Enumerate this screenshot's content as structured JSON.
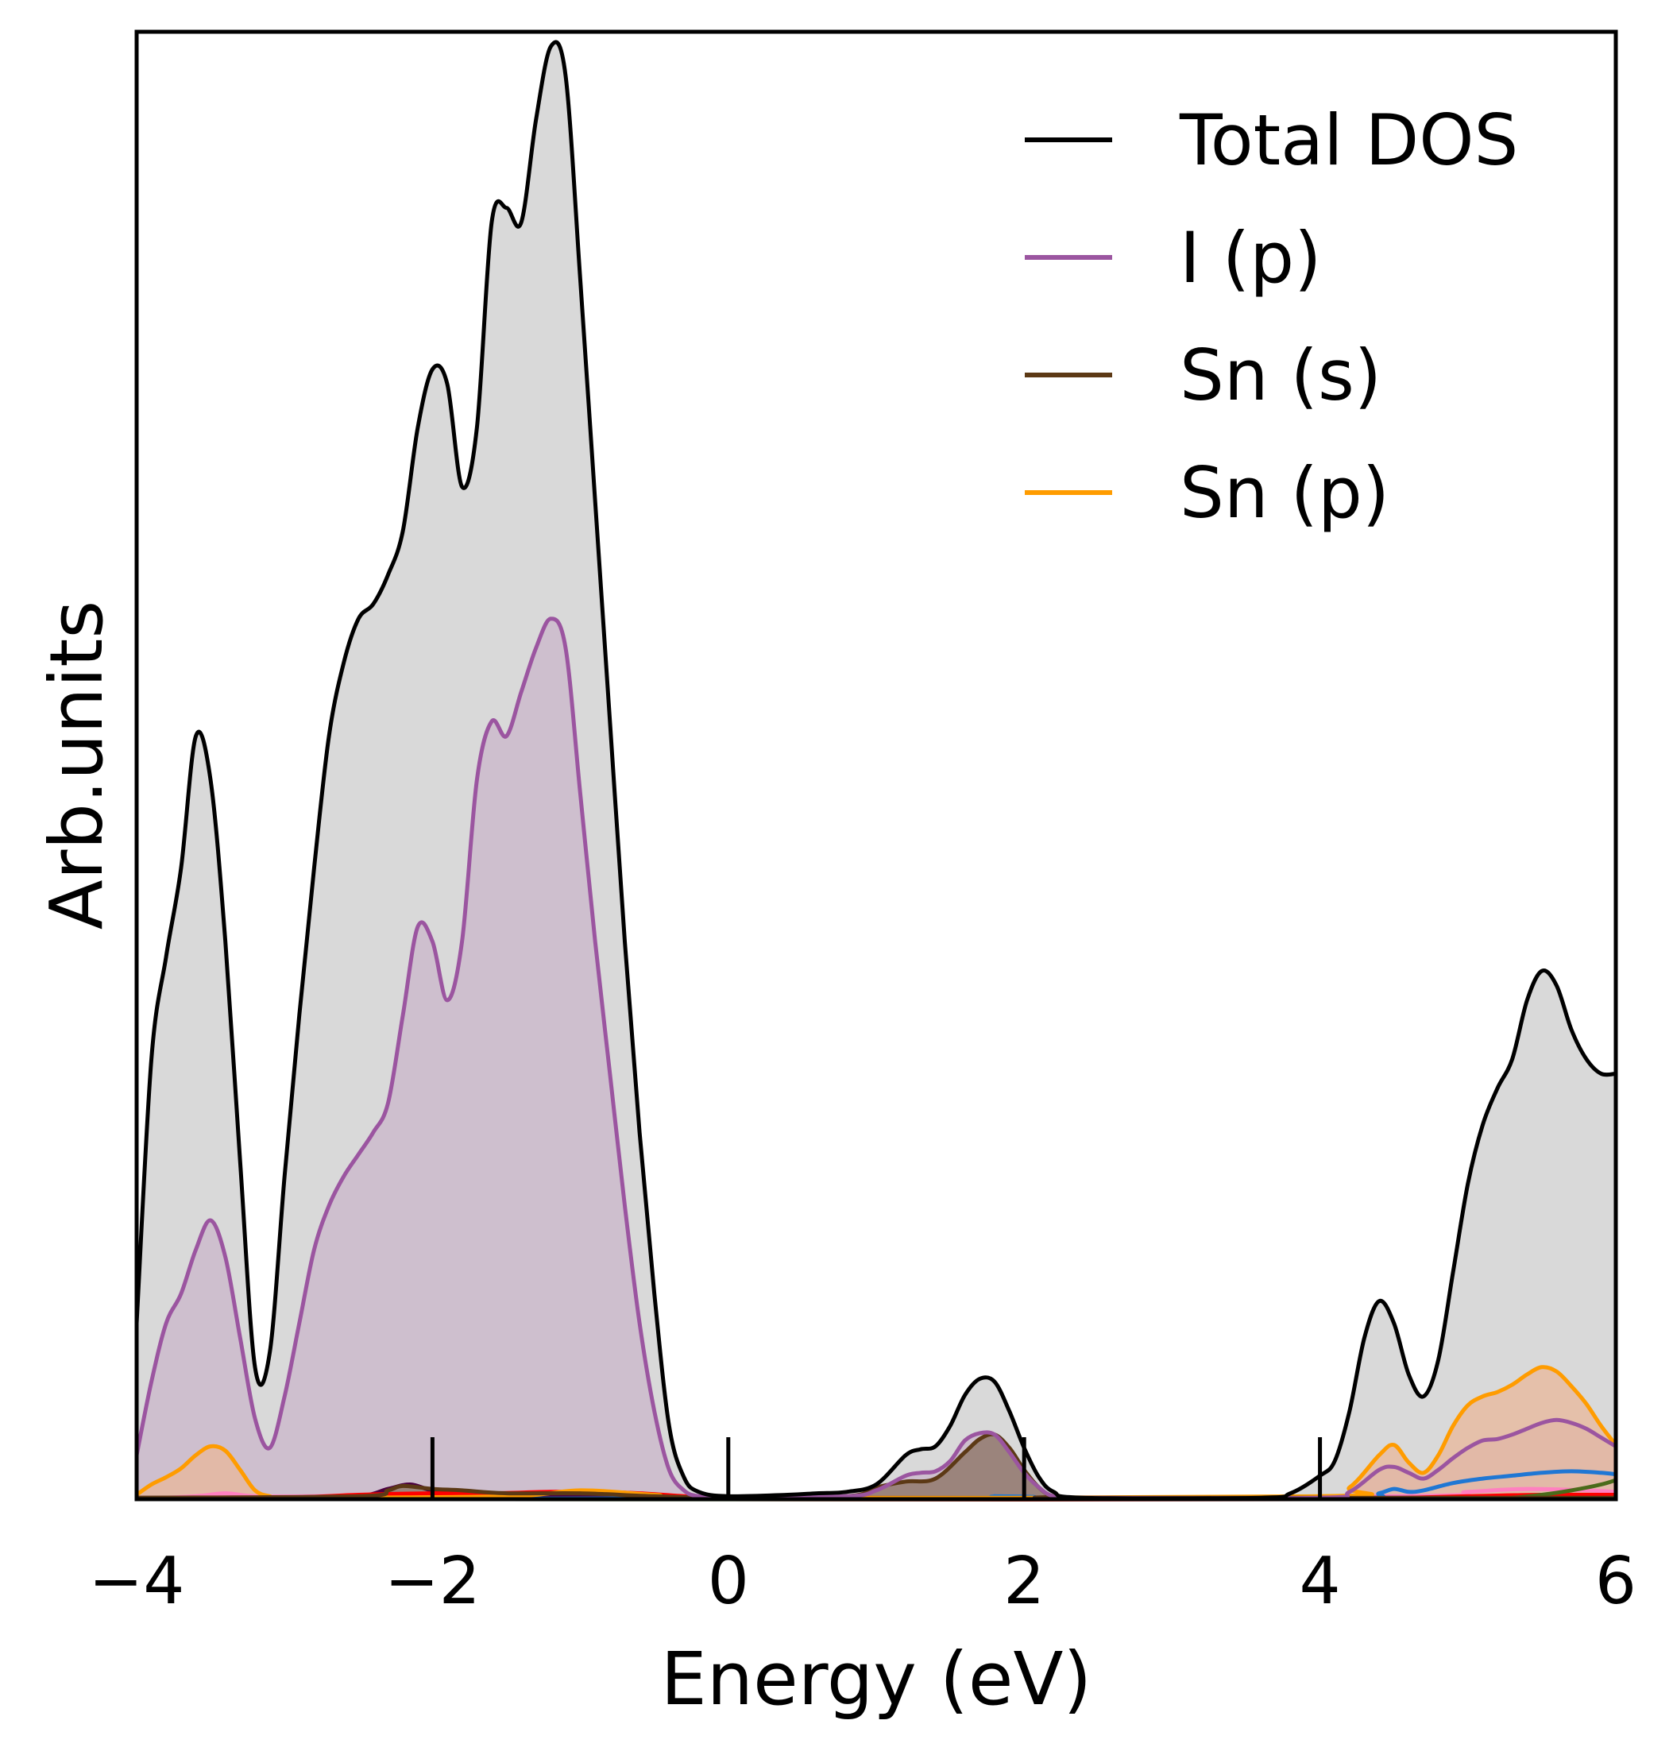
{
  "chart_data": {
    "type": "area",
    "xlabel": "Energy (eV)",
    "ylabel": "Arb.units",
    "xlim": [
      -4,
      6
    ],
    "ylim": [
      0,
      1.0
    ],
    "xticks": [
      -4,
      -2,
      0,
      2,
      4,
      6
    ],
    "xtick_labels": [
      "−4",
      "−2",
      "0",
      "2",
      "4",
      "6"
    ],
    "grid": false,
    "legend_position": "top-right",
    "series": [
      {
        "name": "Total DOS",
        "color": "#000000",
        "fill": "#d9d9d9",
        "points": [
          [
            -4.0,
            0.12
          ],
          [
            -3.9,
            0.3
          ],
          [
            -3.8,
            0.37
          ],
          [
            -3.7,
            0.43
          ],
          [
            -3.6,
            0.52
          ],
          [
            -3.5,
            0.49
          ],
          [
            -3.4,
            0.38
          ],
          [
            -3.3,
            0.23
          ],
          [
            -3.2,
            0.09
          ],
          [
            -3.1,
            0.1
          ],
          [
            -3.0,
            0.22
          ],
          [
            -2.9,
            0.33
          ],
          [
            -2.8,
            0.43
          ],
          [
            -2.7,
            0.52
          ],
          [
            -2.6,
            0.57
          ],
          [
            -2.5,
            0.6
          ],
          [
            -2.4,
            0.61
          ],
          [
            -2.3,
            0.63
          ],
          [
            -2.2,
            0.66
          ],
          [
            -2.1,
            0.73
          ],
          [
            -2.0,
            0.77
          ],
          [
            -1.9,
            0.76
          ],
          [
            -1.8,
            0.69
          ],
          [
            -1.7,
            0.73
          ],
          [
            -1.6,
            0.87
          ],
          [
            -1.5,
            0.88
          ],
          [
            -1.4,
            0.87
          ],
          [
            -1.3,
            0.94
          ],
          [
            -1.2,
            0.99
          ],
          [
            -1.1,
            0.97
          ],
          [
            -1.0,
            0.83
          ],
          [
            -0.9,
            0.68
          ],
          [
            -0.8,
            0.53
          ],
          [
            -0.7,
            0.38
          ],
          [
            -0.6,
            0.25
          ],
          [
            -0.5,
            0.14
          ],
          [
            -0.4,
            0.05
          ],
          [
            -0.3,
            0.015
          ],
          [
            -0.2,
            0.005
          ],
          [
            0.0,
            0.002
          ],
          [
            0.4,
            0.003
          ],
          [
            0.6,
            0.004
          ],
          [
            0.8,
            0.005
          ],
          [
            1.0,
            0.01
          ],
          [
            1.2,
            0.03
          ],
          [
            1.3,
            0.034
          ],
          [
            1.4,
            0.036
          ],
          [
            1.5,
            0.05
          ],
          [
            1.6,
            0.071
          ],
          [
            1.7,
            0.082
          ],
          [
            1.8,
            0.08
          ],
          [
            1.9,
            0.06
          ],
          [
            2.0,
            0.035
          ],
          [
            2.1,
            0.015
          ],
          [
            2.2,
            0.005
          ],
          [
            2.4,
            0.001
          ],
          [
            3.6,
            0.001
          ],
          [
            3.8,
            0.004
          ],
          [
            4.0,
            0.016
          ],
          [
            4.1,
            0.026
          ],
          [
            4.2,
            0.06
          ],
          [
            4.3,
            0.11
          ],
          [
            4.4,
            0.135
          ],
          [
            4.5,
            0.12
          ],
          [
            4.6,
            0.085
          ],
          [
            4.7,
            0.07
          ],
          [
            4.8,
            0.095
          ],
          [
            4.9,
            0.155
          ],
          [
            5.0,
            0.215
          ],
          [
            5.1,
            0.255
          ],
          [
            5.2,
            0.28
          ],
          [
            5.3,
            0.3
          ],
          [
            5.4,
            0.34
          ],
          [
            5.5,
            0.36
          ],
          [
            5.6,
            0.35
          ],
          [
            5.7,
            0.32
          ],
          [
            5.8,
            0.3
          ],
          [
            5.9,
            0.29
          ],
          [
            6.0,
            0.29
          ]
        ]
      },
      {
        "name": "I (p)",
        "color": "#9b55a0",
        "fill": "#c9b6ca",
        "points": [
          [
            -4.0,
            0.03
          ],
          [
            -3.9,
            0.08
          ],
          [
            -3.8,
            0.12
          ],
          [
            -3.7,
            0.14
          ],
          [
            -3.6,
            0.17
          ],
          [
            -3.5,
            0.19
          ],
          [
            -3.4,
            0.165
          ],
          [
            -3.3,
            0.11
          ],
          [
            -3.2,
            0.055
          ],
          [
            -3.1,
            0.035
          ],
          [
            -3.0,
            0.07
          ],
          [
            -2.9,
            0.12
          ],
          [
            -2.8,
            0.17
          ],
          [
            -2.7,
            0.2
          ],
          [
            -2.6,
            0.22
          ],
          [
            -2.5,
            0.235
          ],
          [
            -2.4,
            0.25
          ],
          [
            -2.3,
            0.27
          ],
          [
            -2.2,
            0.33
          ],
          [
            -2.1,
            0.39
          ],
          [
            -2.0,
            0.38
          ],
          [
            -1.9,
            0.34
          ],
          [
            -1.8,
            0.38
          ],
          [
            -1.7,
            0.49
          ],
          [
            -1.6,
            0.53
          ],
          [
            -1.5,
            0.52
          ],
          [
            -1.4,
            0.55
          ],
          [
            -1.3,
            0.58
          ],
          [
            -1.2,
            0.6
          ],
          [
            -1.1,
            0.58
          ],
          [
            -1.0,
            0.48
          ],
          [
            -0.9,
            0.38
          ],
          [
            -0.8,
            0.29
          ],
          [
            -0.7,
            0.2
          ],
          [
            -0.6,
            0.12
          ],
          [
            -0.5,
            0.06
          ],
          [
            -0.4,
            0.02
          ],
          [
            -0.3,
            0.006
          ],
          [
            -0.2,
            0.002
          ],
          [
            0.0,
            0.001
          ],
          [
            0.8,
            0.002
          ],
          [
            1.0,
            0.006
          ],
          [
            1.2,
            0.016
          ],
          [
            1.3,
            0.018
          ],
          [
            1.4,
            0.019
          ],
          [
            1.5,
            0.026
          ],
          [
            1.6,
            0.04
          ],
          [
            1.7,
            0.045
          ],
          [
            1.8,
            0.044
          ],
          [
            1.9,
            0.032
          ],
          [
            2.0,
            0.018
          ],
          [
            2.1,
            0.008
          ],
          [
            2.2,
            0.002
          ],
          [
            2.4,
            0.001
          ],
          [
            4.0,
            0.001
          ],
          [
            4.2,
            0.005
          ],
          [
            4.4,
            0.02
          ],
          [
            4.5,
            0.022
          ],
          [
            4.6,
            0.018
          ],
          [
            4.7,
            0.014
          ],
          [
            4.8,
            0.02
          ],
          [
            4.9,
            0.028
          ],
          [
            5.0,
            0.035
          ],
          [
            5.1,
            0.04
          ],
          [
            5.2,
            0.041
          ],
          [
            5.3,
            0.044
          ],
          [
            5.4,
            0.048
          ],
          [
            5.5,
            0.052
          ],
          [
            5.6,
            0.054
          ],
          [
            5.7,
            0.052
          ],
          [
            5.8,
            0.048
          ],
          [
            5.9,
            0.042
          ],
          [
            6.0,
            0.036
          ]
        ]
      },
      {
        "name": "Sn (s)",
        "color": "#5c3915",
        "fill": "#8a7060",
        "points": [
          [
            -4.0,
            0.001
          ],
          [
            -2.5,
            0.002
          ],
          [
            -2.3,
            0.006
          ],
          [
            -2.2,
            0.009
          ],
          [
            -2.0,
            0.007
          ],
          [
            -1.8,
            0.006
          ],
          [
            -1.5,
            0.004
          ],
          [
            -1.0,
            0.004
          ],
          [
            -0.5,
            0.002
          ],
          [
            0.0,
            0.001
          ],
          [
            0.8,
            0.002
          ],
          [
            1.0,
            0.008
          ],
          [
            1.2,
            0.012
          ],
          [
            1.4,
            0.014
          ],
          [
            1.6,
            0.032
          ],
          [
            1.7,
            0.041
          ],
          [
            1.8,
            0.044
          ],
          [
            1.9,
            0.035
          ],
          [
            2.0,
            0.02
          ],
          [
            2.1,
            0.008
          ],
          [
            2.2,
            0.002
          ],
          [
            2.4,
            0.001
          ],
          [
            6.0,
            0.001
          ]
        ]
      },
      {
        "name": "Sn (p)",
        "color": "#ff9c00",
        "fill": "#e8b79a",
        "points": [
          [
            -4.0,
            0.003
          ],
          [
            -3.9,
            0.01
          ],
          [
            -3.8,
            0.015
          ],
          [
            -3.7,
            0.021
          ],
          [
            -3.6,
            0.03
          ],
          [
            -3.5,
            0.036
          ],
          [
            -3.4,
            0.033
          ],
          [
            -3.3,
            0.02
          ],
          [
            -3.2,
            0.006
          ],
          [
            -3.1,
            0.002
          ],
          [
            -3.0,
            0.001
          ],
          [
            -1.5,
            0.002
          ],
          [
            -1.0,
            0.006
          ],
          [
            -0.5,
            0.003
          ],
          [
            0.0,
            0.001
          ],
          [
            4.0,
            0.002
          ],
          [
            4.2,
            0.008
          ],
          [
            4.4,
            0.03
          ],
          [
            4.5,
            0.037
          ],
          [
            4.6,
            0.025
          ],
          [
            4.7,
            0.018
          ],
          [
            4.8,
            0.03
          ],
          [
            4.9,
            0.05
          ],
          [
            5.0,
            0.064
          ],
          [
            5.1,
            0.07
          ],
          [
            5.2,
            0.073
          ],
          [
            5.3,
            0.078
          ],
          [
            5.4,
            0.085
          ],
          [
            5.5,
            0.09
          ],
          [
            5.6,
            0.087
          ],
          [
            5.7,
            0.077
          ],
          [
            5.8,
            0.065
          ],
          [
            5.9,
            0.05
          ],
          [
            6.0,
            0.037
          ]
        ]
      }
    ],
    "minor_series": [
      {
        "color": "#ff80c0",
        "points": [
          [
            -4.0,
            0.0
          ],
          [
            -3.6,
            0.002
          ],
          [
            -3.4,
            0.004
          ],
          [
            -3.2,
            0.002
          ],
          [
            -2.8,
            0.002
          ],
          [
            -2.2,
            0.003
          ],
          [
            -1.6,
            0.003
          ],
          [
            -1.0,
            0.003
          ],
          [
            -0.5,
            0.002
          ],
          [
            0.0,
            0.0
          ],
          [
            4.5,
            0.002
          ],
          [
            5.0,
            0.005
          ],
          [
            5.4,
            0.007
          ],
          [
            5.8,
            0.006
          ],
          [
            6.0,
            0.005
          ]
        ]
      },
      {
        "color": "#4b0040",
        "points": [
          [
            -4.0,
            0.001
          ],
          [
            -3.0,
            0.001
          ],
          [
            -2.5,
            0.002
          ],
          [
            -2.3,
            0.007
          ],
          [
            -2.15,
            0.01
          ],
          [
            -2.0,
            0.006
          ],
          [
            -1.8,
            0.005
          ],
          [
            -1.5,
            0.003
          ],
          [
            -1.0,
            0.002
          ],
          [
            0.0,
            0.001
          ],
          [
            6.0,
            0.001
          ]
        ]
      },
      {
        "color": "#ff0000",
        "points": [
          [
            -4.0,
            0.0
          ],
          [
            -3.0,
            0.001
          ],
          [
            -2.5,
            0.003
          ],
          [
            -2.0,
            0.004
          ],
          [
            -1.6,
            0.004
          ],
          [
            -1.2,
            0.005
          ],
          [
            -0.9,
            0.005
          ],
          [
            -0.6,
            0.004
          ],
          [
            -0.3,
            0.002
          ],
          [
            0.0,
            0.0
          ],
          [
            4.0,
            0.0
          ],
          [
            4.6,
            0.001
          ],
          [
            5.0,
            0.002
          ],
          [
            5.5,
            0.003
          ],
          [
            6.0,
            0.003
          ]
        ]
      },
      {
        "color": "#1f77d4",
        "points": [
          [
            -4.0,
            0.0
          ],
          [
            1.6,
            0.001
          ],
          [
            1.8,
            0.002
          ],
          [
            2.0,
            0.001
          ],
          [
            4.2,
            0.0
          ],
          [
            4.4,
            0.004
          ],
          [
            4.5,
            0.007
          ],
          [
            4.6,
            0.005
          ],
          [
            4.7,
            0.006
          ],
          [
            4.9,
            0.011
          ],
          [
            5.1,
            0.014
          ],
          [
            5.3,
            0.016
          ],
          [
            5.5,
            0.018
          ],
          [
            5.7,
            0.019
          ],
          [
            5.9,
            0.018
          ],
          [
            6.0,
            0.017
          ]
        ]
      },
      {
        "color": "#4a6b1a",
        "points": [
          [
            -4.0,
            0.0
          ],
          [
            5.0,
            0.0
          ],
          [
            5.3,
            0.001
          ],
          [
            5.5,
            0.003
          ],
          [
            5.7,
            0.006
          ],
          [
            5.9,
            0.01
          ],
          [
            6.0,
            0.013
          ]
        ]
      }
    ],
    "fermi_markers": [
      -2,
      0,
      2,
      4
    ]
  }
}
